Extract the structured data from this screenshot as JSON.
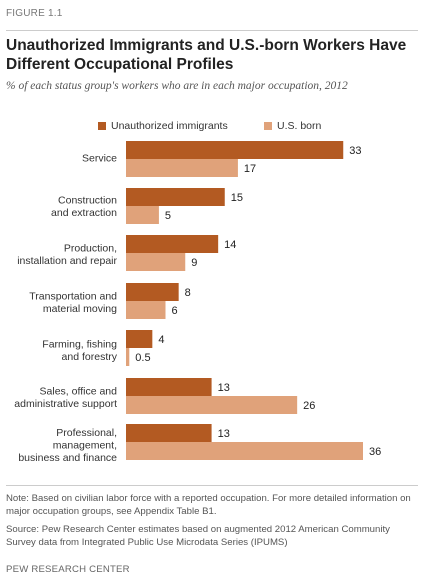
{
  "figure_label": "FIGURE 1.1",
  "title": "Unauthorized Immigrants and U.S.-born Workers Have Different Occupational Profiles",
  "subtitle": "% of each status group's workers who are in each major occupation, 2012",
  "colors": {
    "unauthorized": "#b35a22",
    "us_born": "#e0a27a"
  },
  "chart_data": {
    "type": "bar",
    "orientation": "horizontal",
    "categories": [
      [
        "Service"
      ],
      [
        "Construction",
        "and extraction"
      ],
      [
        "Production,",
        "installation and repair"
      ],
      [
        "Transportation and",
        "material moving"
      ],
      [
        "Farming, fishing",
        "and forestry"
      ],
      [
        "Sales, office and",
        "administrative support"
      ],
      [
        "Professional,",
        "management,",
        "business and finance"
      ]
    ],
    "series": [
      {
        "name": "Unauthorized immigrants",
        "values": [
          33,
          15,
          14,
          8,
          4,
          13,
          13
        ],
        "labels": [
          "33",
          "15",
          "14",
          "8",
          "4",
          "13",
          "13"
        ]
      },
      {
        "name": "U.S. born",
        "values": [
          17,
          5,
          9,
          6,
          0.5,
          26,
          36
        ],
        "labels": [
          "17",
          "5",
          "9",
          "6",
          "0.5",
          "26",
          "36"
        ]
      }
    ],
    "xlim": [
      0,
      36
    ],
    "legend": "top-center",
    "grid": false
  },
  "note": "Note: Based on civilian labor force with a reported occupation. For more detailed information on major occupation groups, see Appendix Table B1.",
  "source": "Source: Pew Research Center estimates based on augmented 2012 American Community Survey data from Integrated Public Use Microdata Series (IPUMS)",
  "credit": "PEW RESEARCH CENTER"
}
